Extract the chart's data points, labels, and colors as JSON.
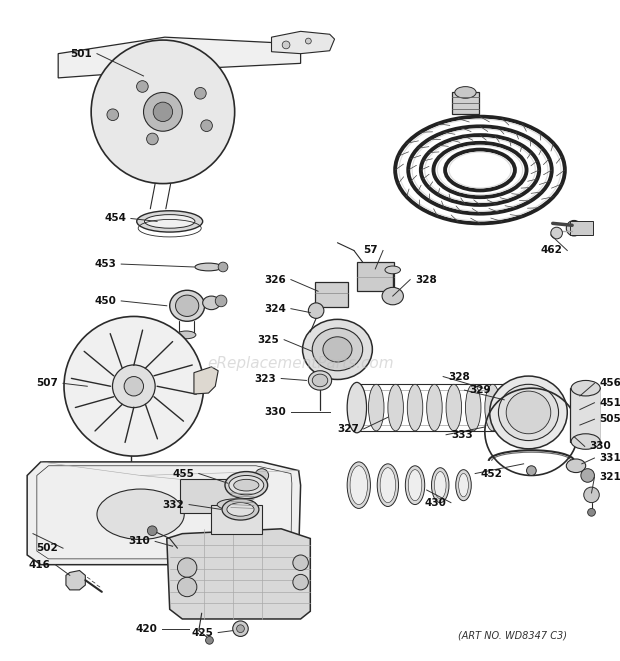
{
  "bg_color": "#ffffff",
  "line_color": "#2a2a2a",
  "art_no": "(ART NO. WD8347 C3)",
  "watermark": "eReplacementParts.com",
  "watermark_color": "#bbbbbb",
  "figsize": [
    6.2,
    6.61
  ],
  "dpi": 100
}
